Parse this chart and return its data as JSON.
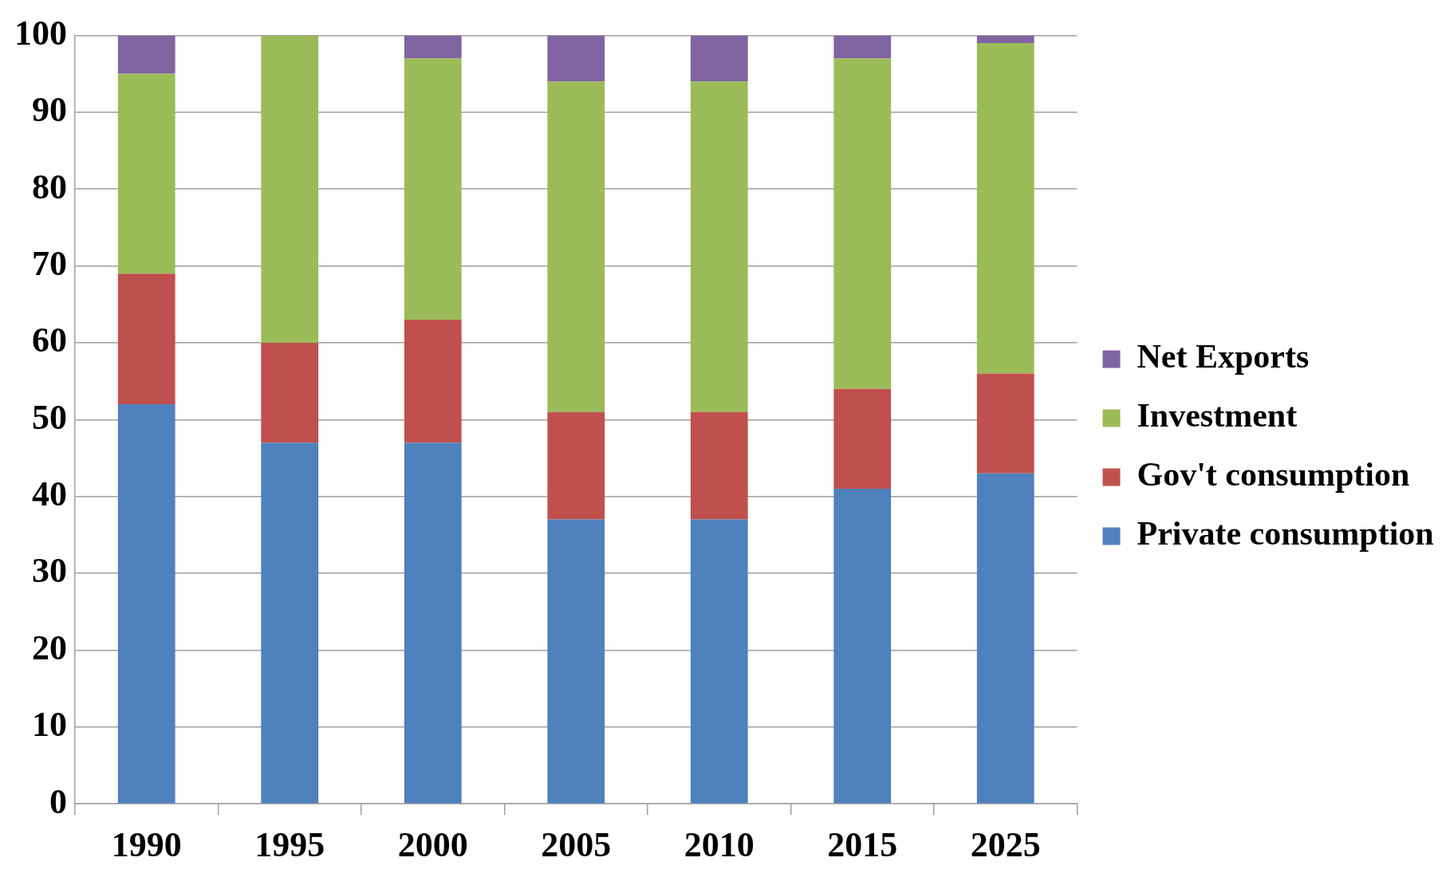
{
  "chart_data": {
    "type": "bar",
    "stacked": true,
    "categories": [
      "1990",
      "1995",
      "2000",
      "2005",
      "2010",
      "2015",
      "2025"
    ],
    "series": [
      {
        "name": "Private consumption",
        "color": "#4f81bd",
        "values": [
          52,
          47,
          47,
          37,
          37,
          41,
          43
        ]
      },
      {
        "name": "Gov't consumption",
        "color": "#c0504d",
        "values": [
          17,
          13,
          16,
          14,
          14,
          13,
          13
        ]
      },
      {
        "name": "Investment",
        "color": "#9bbb59",
        "values": [
          26,
          40,
          34,
          43,
          43,
          43,
          43
        ]
      },
      {
        "name": "Net Exports",
        "color": "#8064a2",
        "values": [
          5,
          0,
          3,
          6,
          6,
          3,
          1
        ]
      }
    ],
    "ylim": [
      0,
      100
    ],
    "yticks": [
      0,
      10,
      20,
      30,
      40,
      50,
      60,
      70,
      80,
      90,
      100
    ],
    "grid": "y",
    "legend": "right"
  }
}
